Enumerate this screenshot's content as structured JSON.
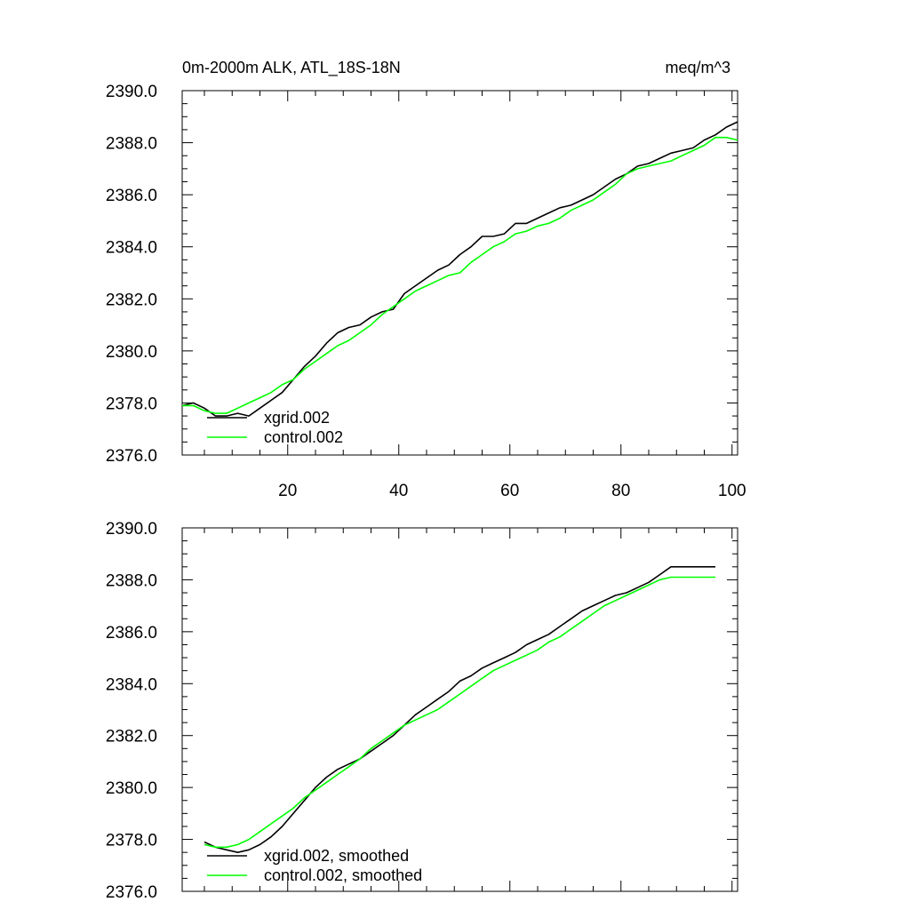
{
  "chart_data": [
    {
      "type": "line",
      "title": "0m-2000m ALK, ATL_18S-18N",
      "units": "meq/m^3",
      "xlim": [
        1,
        101
      ],
      "ylim": [
        2376.0,
        2390.0
      ],
      "x_ticks": [
        20,
        40,
        60,
        80,
        100
      ],
      "x_tick_labels": [
        "20",
        "40",
        "60",
        "80",
        "100"
      ],
      "y_ticks": [
        2376.0,
        2378.0,
        2380.0,
        2382.0,
        2384.0,
        2386.0,
        2388.0,
        2390.0
      ],
      "y_tick_labels": [
        "2376.0",
        "2378.0",
        "2380.0",
        "2382.0",
        "2384.0",
        "2386.0",
        "2388.0",
        "2390.0"
      ],
      "legend_position": "bottom-left",
      "series": [
        {
          "name": "xgrid.002",
          "color": "#000000",
          "x": [
            1,
            3,
            5,
            7,
            9,
            11,
            13,
            15,
            17,
            19,
            21,
            23,
            25,
            27,
            29,
            31,
            33,
            35,
            37,
            39,
            41,
            43,
            45,
            47,
            49,
            51,
            53,
            55,
            57,
            59,
            61,
            63,
            65,
            67,
            69,
            71,
            73,
            75,
            77,
            79,
            81,
            83,
            85,
            87,
            89,
            91,
            93,
            95,
            97,
            99,
            101
          ],
          "values": [
            2377.9,
            2378.0,
            2377.8,
            2377.5,
            2377.5,
            2377.6,
            2377.5,
            2377.8,
            2378.1,
            2378.4,
            2378.9,
            2379.4,
            2379.8,
            2380.3,
            2380.7,
            2380.9,
            2381.0,
            2381.3,
            2381.5,
            2381.6,
            2382.2,
            2382.5,
            2382.8,
            2383.1,
            2383.3,
            2383.7,
            2384.0,
            2384.4,
            2384.4,
            2384.5,
            2384.9,
            2384.9,
            2385.1,
            2385.3,
            2385.5,
            2385.6,
            2385.8,
            2386.0,
            2386.3,
            2386.6,
            2386.8,
            2387.1,
            2387.2,
            2387.4,
            2387.6,
            2387.7,
            2387.8,
            2388.1,
            2388.3,
            2388.6,
            2388.8
          ]
        },
        {
          "name": "control.002",
          "color": "#00ff00",
          "x": [
            1,
            3,
            5,
            7,
            9,
            11,
            13,
            15,
            17,
            19,
            21,
            23,
            25,
            27,
            29,
            31,
            33,
            35,
            37,
            39,
            41,
            43,
            45,
            47,
            49,
            51,
            53,
            55,
            57,
            59,
            61,
            63,
            65,
            67,
            69,
            71,
            73,
            75,
            77,
            79,
            81,
            83,
            85,
            87,
            89,
            91,
            93,
            95,
            97,
            99,
            101
          ],
          "values": [
            2377.9,
            2377.9,
            2377.7,
            2377.6,
            2377.6,
            2377.8,
            2378.0,
            2378.2,
            2378.4,
            2378.7,
            2378.9,
            2379.3,
            2379.6,
            2379.9,
            2380.2,
            2380.4,
            2380.7,
            2381.0,
            2381.4,
            2381.7,
            2382.0,
            2382.3,
            2382.5,
            2382.7,
            2382.9,
            2383.0,
            2383.4,
            2383.7,
            2384.0,
            2384.2,
            2384.5,
            2384.6,
            2384.8,
            2384.9,
            2385.1,
            2385.4,
            2385.6,
            2385.8,
            2386.1,
            2386.4,
            2386.8,
            2387.0,
            2387.1,
            2387.2,
            2387.3,
            2387.5,
            2387.7,
            2387.9,
            2388.2,
            2388.2,
            2388.1
          ]
        }
      ]
    },
    {
      "type": "line",
      "title": "",
      "xlim": [
        1,
        101
      ],
      "ylim": [
        2376.0,
        2390.0
      ],
      "x_ticks": [
        20,
        40,
        60,
        80,
        100
      ],
      "y_ticks": [
        2376.0,
        2378.0,
        2380.0,
        2382.0,
        2384.0,
        2386.0,
        2388.0,
        2390.0
      ],
      "y_tick_labels": [
        "2376.0",
        "2378.0",
        "2380.0",
        "2382.0",
        "2384.0",
        "2386.0",
        "2388.0",
        "2390.0"
      ],
      "legend_position": "bottom-left",
      "series": [
        {
          "name": "xgrid.002, smoothed",
          "color": "#000000",
          "x": [
            5,
            7,
            9,
            11,
            13,
            15,
            17,
            19,
            21,
            23,
            25,
            27,
            29,
            31,
            33,
            35,
            37,
            39,
            41,
            43,
            45,
            47,
            49,
            51,
            53,
            55,
            57,
            59,
            61,
            63,
            65,
            67,
            69,
            71,
            73,
            75,
            77,
            79,
            81,
            83,
            85,
            87,
            89,
            91,
            93,
            95,
            97
          ],
          "values": [
            2377.9,
            2377.7,
            2377.6,
            2377.5,
            2377.6,
            2377.8,
            2378.1,
            2378.5,
            2379.0,
            2379.5,
            2380.0,
            2380.4,
            2380.7,
            2380.9,
            2381.1,
            2381.4,
            2381.7,
            2382.0,
            2382.4,
            2382.8,
            2383.1,
            2383.4,
            2383.7,
            2384.1,
            2384.3,
            2384.6,
            2384.8,
            2385.0,
            2385.2,
            2385.5,
            2385.7,
            2385.9,
            2386.2,
            2386.5,
            2386.8,
            2387.0,
            2387.2,
            2387.4,
            2387.5,
            2387.7,
            2387.9,
            2388.2,
            2388.5,
            2388.5,
            2388.5,
            2388.5,
            2388.5
          ]
        },
        {
          "name": "control.002, smoothed",
          "color": "#00ff00",
          "x": [
            5,
            7,
            9,
            11,
            13,
            15,
            17,
            19,
            21,
            23,
            25,
            27,
            29,
            31,
            33,
            35,
            37,
            39,
            41,
            43,
            45,
            47,
            49,
            51,
            53,
            55,
            57,
            59,
            61,
            63,
            65,
            67,
            69,
            71,
            73,
            75,
            77,
            79,
            81,
            83,
            85,
            87,
            89,
            91,
            93,
            95,
            97
          ],
          "values": [
            2377.8,
            2377.7,
            2377.7,
            2377.8,
            2378.0,
            2378.3,
            2378.6,
            2378.9,
            2379.2,
            2379.6,
            2379.9,
            2380.2,
            2380.5,
            2380.8,
            2381.1,
            2381.5,
            2381.8,
            2382.1,
            2382.4,
            2382.6,
            2382.8,
            2383.0,
            2383.3,
            2383.6,
            2383.9,
            2384.2,
            2384.5,
            2384.7,
            2384.9,
            2385.1,
            2385.3,
            2385.6,
            2385.8,
            2386.1,
            2386.4,
            2386.7,
            2387.0,
            2387.2,
            2387.4,
            2387.6,
            2387.8,
            2388.0,
            2388.1,
            2388.1,
            2388.1,
            2388.1,
            2388.1
          ]
        }
      ]
    }
  ]
}
